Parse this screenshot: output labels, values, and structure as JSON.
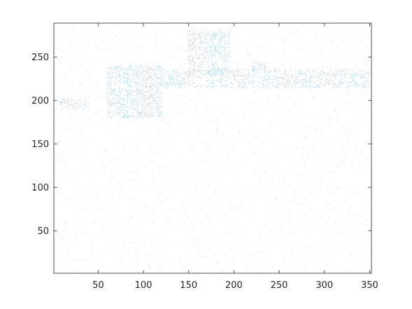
{
  "chart_data": {
    "type": "scatter",
    "title": "",
    "xlabel": "",
    "ylabel": "",
    "xlim": [
      1,
      352
    ],
    "ylim": [
      1,
      289
    ],
    "xticks": [
      50,
      100,
      150,
      200,
      250,
      300,
      350
    ],
    "yticks": [
      50,
      100,
      150,
      200,
      250
    ],
    "xtick_labels": [
      "50",
      "100",
      "150",
      "200",
      "250",
      "300",
      "350"
    ],
    "ytick_labels": [
      "50",
      "100",
      "150",
      "200",
      "250"
    ],
    "grid": false,
    "box": true,
    "marker_color": "#0072BD",
    "description": "Sparse point cloud covering the full axes; denser cluster bands near y=180-280 between x=60-350",
    "clusters": [
      {
        "x": [
          60,
          120
        ],
        "y": [
          180,
          240
        ],
        "density": 0.35
      },
      {
        "x": [
          150,
          195
        ],
        "y": [
          230,
          280
        ],
        "density": 0.3
      },
      {
        "x": [
          120,
          350
        ],
        "y": [
          215,
          235
        ],
        "density": 0.3
      },
      {
        "x": [
          8,
          40
        ],
        "y": [
          190,
          202
        ],
        "density": 0.3
      },
      {
        "x": [
          220,
          235
        ],
        "y": [
          235,
          245
        ],
        "density": 0.4
      }
    ],
    "background_density": 0.06
  }
}
